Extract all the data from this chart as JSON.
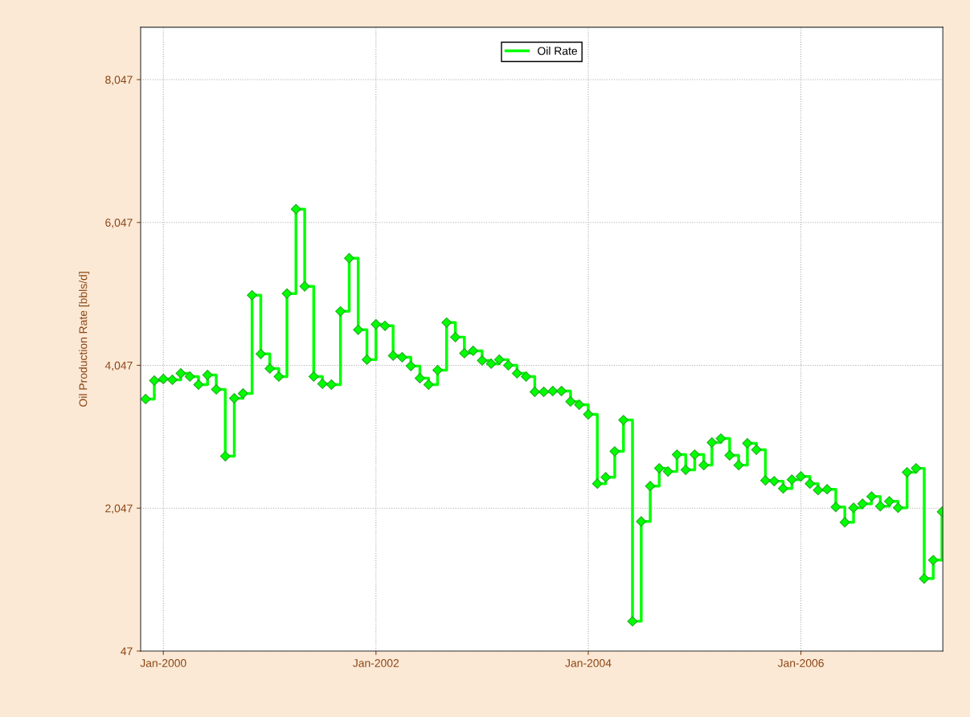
{
  "chart_data": {
    "type": "step",
    "ylabel": "Oil Production Rate [bbls/d]",
    "x": [
      "1999-11",
      "1999-12",
      "2000-01",
      "2000-02",
      "2000-03",
      "2000-04",
      "2000-05",
      "2000-06",
      "2000-07",
      "2000-08",
      "2000-09",
      "2000-10",
      "2000-11",
      "2000-12",
      "2001-01",
      "2001-02",
      "2001-03",
      "2001-04",
      "2001-05",
      "2001-06",
      "2001-07",
      "2001-08",
      "2001-09",
      "2001-10",
      "2001-11",
      "2001-12",
      "2002-01",
      "2002-02",
      "2002-03",
      "2002-04",
      "2002-05",
      "2002-06",
      "2002-07",
      "2002-08",
      "2002-09",
      "2002-10",
      "2002-11",
      "2002-12",
      "2003-01",
      "2003-02",
      "2003-03",
      "2003-04",
      "2003-05",
      "2003-06",
      "2003-07",
      "2003-08",
      "2003-09",
      "2003-10",
      "2003-11",
      "2003-12",
      "2004-01",
      "2004-02",
      "2004-03",
      "2004-04",
      "2004-05",
      "2004-06",
      "2004-07",
      "2004-08",
      "2004-09",
      "2004-10",
      "2004-11",
      "2004-12",
      "2005-01",
      "2005-02",
      "2005-03",
      "2005-04",
      "2005-05",
      "2005-06",
      "2005-07",
      "2005-08",
      "2005-09",
      "2005-10",
      "2005-11",
      "2005-12",
      "2006-01",
      "2006-02",
      "2006-03",
      "2006-04",
      "2006-05",
      "2006-06",
      "2006-07",
      "2006-08",
      "2006-09",
      "2006-10",
      "2006-11",
      "2006-12",
      "2007-01",
      "2007-02",
      "2007-03",
      "2007-04",
      "2007-05"
    ],
    "series": [
      {
        "name": "Oil Rate",
        "color": "#00ff00",
        "values": [
          3575,
          3834,
          3856,
          3845,
          3935,
          3890,
          3777,
          3912,
          3710,
          2774,
          3586,
          3653,
          5028,
          4206,
          4003,
          3890,
          5051,
          6234,
          5152,
          3890,
          3789,
          3777,
          4803,
          5547,
          4544,
          4127,
          4622,
          4600,
          4183,
          4160,
          4037,
          3867,
          3777,
          3980,
          4645,
          4442,
          4217,
          4250,
          4115,
          4070,
          4127,
          4048,
          3935,
          3890,
          3676,
          3676,
          3687,
          3687,
          3541,
          3496,
          3360,
          2391,
          2481,
          2842,
          3281,
          464,
          1861,
          2357,
          2605,
          2560,
          2797,
          2583,
          2797,
          2650,
          2966,
          3022,
          2786,
          2650,
          2955,
          2865,
          2436,
          2425,
          2323,
          2447,
          2492,
          2391,
          2301,
          2312,
          2064,
          1850,
          2053,
          2109,
          2211,
          2075,
          2143,
          2053,
          2549,
          2605,
          1061,
          1320,
          1997
        ]
      }
    ],
    "xlim": [
      "1999-10-15",
      "2007-05-04"
    ],
    "xticks": [
      {
        "value": "2000-01-01",
        "label": "Jan-2000"
      },
      {
        "value": "2002-01-01",
        "label": "Jan-2002"
      },
      {
        "value": "2004-01-01",
        "label": "Jan-2004"
      },
      {
        "value": "2006-01-01",
        "label": "Jan-2006"
      }
    ],
    "ylim": [
      47,
      8780
    ],
    "yticks": [
      {
        "value": 47,
        "label": "47"
      },
      {
        "value": 2047,
        "label": "2,047"
      },
      {
        "value": 4047,
        "label": "4,047"
      },
      {
        "value": 6047,
        "label": "6,047"
      },
      {
        "value": 8047,
        "label": "8,047"
      }
    ],
    "grid": true,
    "legend": "top",
    "marker": "diamond",
    "line_style": "solid"
  }
}
